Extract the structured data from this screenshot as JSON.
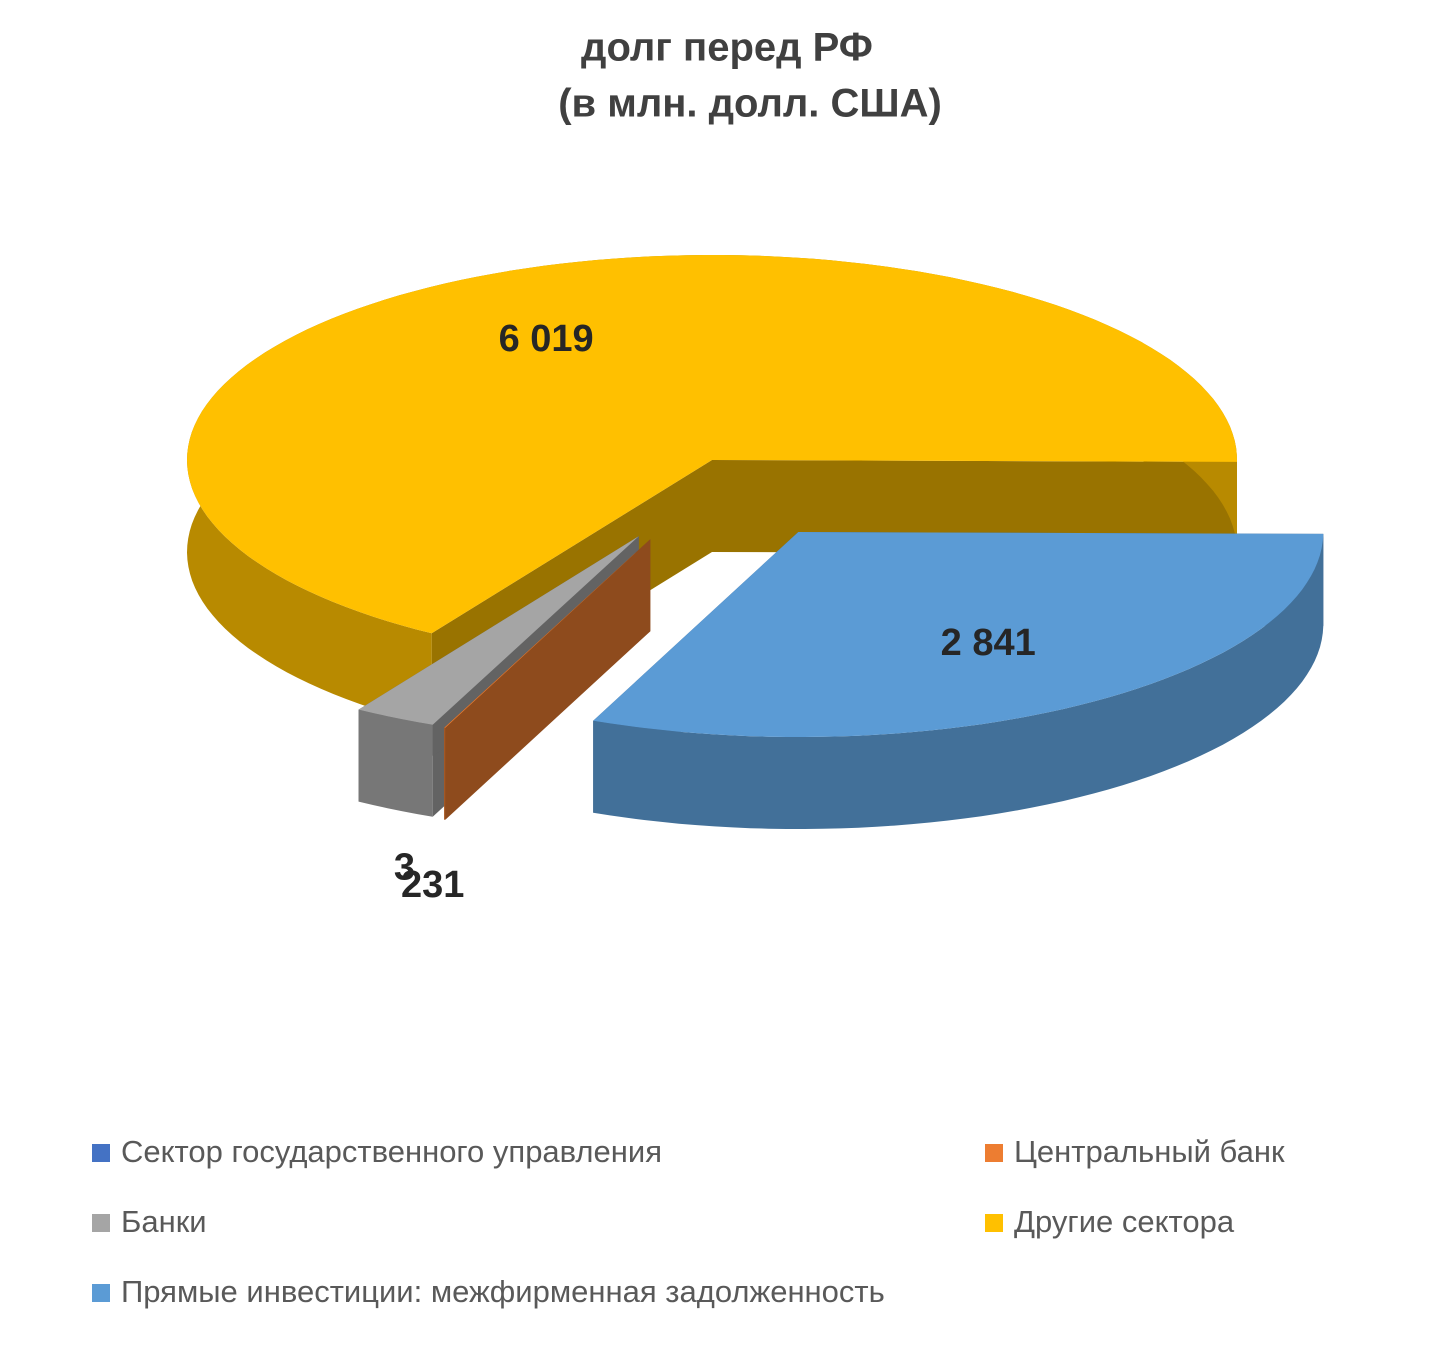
{
  "chart_data": {
    "type": "pie",
    "title": "долг перед РФ",
    "subtitle": "(в млн. долл. США)",
    "categories": [
      "Сектор государственного управления",
      "Центральный банк",
      "Банки",
      "Другие сектора",
      "Прямые инвестиции: межфирменная задолженность"
    ],
    "values": [
      0,
      3,
      231,
      6019,
      2841
    ],
    "value_labels": [
      null,
      "3",
      "231",
      "6 019",
      "2 841"
    ],
    "colors": [
      "#4472c4",
      "#ed7d31",
      "#a5a5a5",
      "#ffc000",
      "#5b9bd5"
    ],
    "legend": "bottom"
  }
}
